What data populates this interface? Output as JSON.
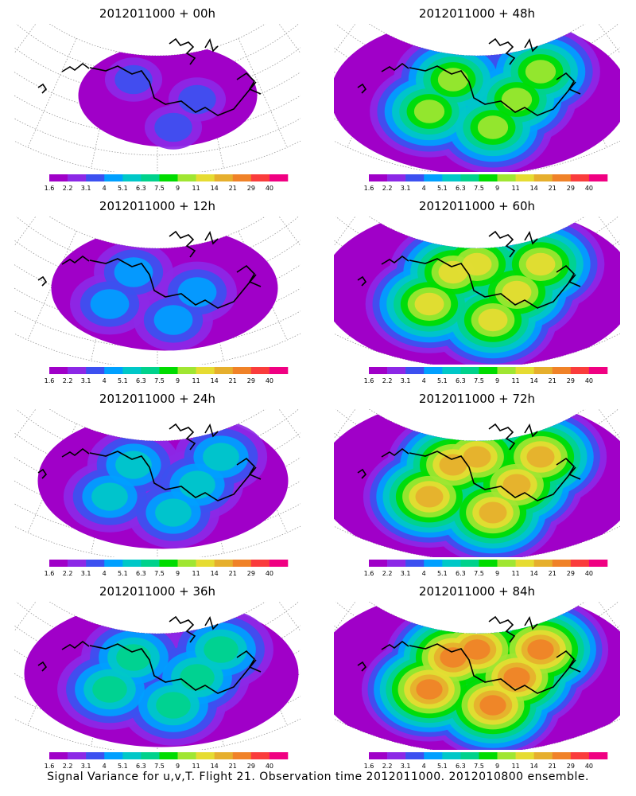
{
  "colorbar": {
    "labels": [
      "1.6",
      "2.2",
      "3.1",
      "4",
      "5.1",
      "6.3",
      "7.5",
      "9",
      "11",
      "14",
      "21",
      "29",
      "40"
    ],
    "colors": [
      "#a000c8",
      "#8c28e6",
      "#3c50f0",
      "#00a0ff",
      "#00c8c8",
      "#00d28c",
      "#00dc00",
      "#a0e632",
      "#e6dc32",
      "#e6af2d",
      "#f08228",
      "#fa3c3c",
      "#f00082"
    ]
  },
  "panels": [
    {
      "title": "2012011000 + 00h",
      "intensity": 0.05,
      "coverage": 0.35
    },
    {
      "title": "2012011000 + 48h",
      "intensity": 0.55,
      "coverage": 0.85
    },
    {
      "title": "2012011000 + 12h",
      "intensity": 0.18,
      "coverage": 0.55
    },
    {
      "title": "2012011000 + 60h",
      "intensity": 0.62,
      "coverage": 0.92
    },
    {
      "title": "2012011000 + 24h",
      "intensity": 0.28,
      "coverage": 0.65
    },
    {
      "title": "2012011000 + 72h",
      "intensity": 0.7,
      "coverage": 0.95
    },
    {
      "title": "2012011000 + 36h",
      "intensity": 0.4,
      "coverage": 0.75
    },
    {
      "title": "2012011000 + 84h",
      "intensity": 0.8,
      "coverage": 0.97
    }
  ],
  "caption": "Signal Variance for u,v,T. Flight 21. Observation time 2012011000. 2012010800 ensemble."
}
